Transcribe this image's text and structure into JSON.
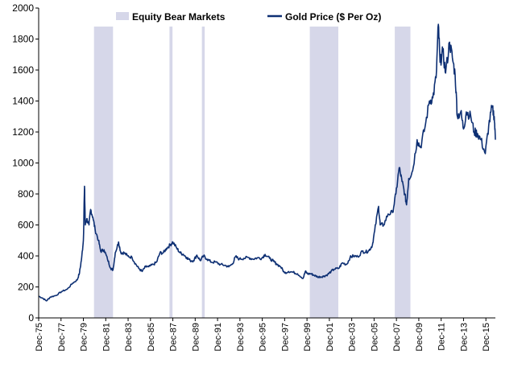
{
  "chart_data": {
    "type": "line",
    "title": "",
    "xlabel": "",
    "ylabel": "",
    "x_domain": [
      1975.95,
      2016.8
    ],
    "ylim": [
      0,
      2000
    ],
    "y_ticks": [
      0,
      200,
      400,
      600,
      800,
      1000,
      1200,
      1400,
      1600,
      1800,
      2000
    ],
    "x_ticks": [
      {
        "label": "Dec-75",
        "x": 1975.95
      },
      {
        "label": "Dec-77",
        "x": 1977.95
      },
      {
        "label": "Dec-79",
        "x": 1979.95
      },
      {
        "label": "Dec-81",
        "x": 1981.95
      },
      {
        "label": "Dec-83",
        "x": 1983.95
      },
      {
        "label": "Dec-85",
        "x": 1985.95
      },
      {
        "label": "Dec-87",
        "x": 1987.95
      },
      {
        "label": "Dec-89",
        "x": 1989.95
      },
      {
        "label": "Dec-91",
        "x": 1991.95
      },
      {
        "label": "Dec-93",
        "x": 1993.95
      },
      {
        "label": "Dec-95",
        "x": 1995.95
      },
      {
        "label": "Dec-97",
        "x": 1997.95
      },
      {
        "label": "Dec-99",
        "x": 1999.95
      },
      {
        "label": "Dec-01",
        "x": 2001.95
      },
      {
        "label": "Dec-03",
        "x": 2003.95
      },
      {
        "label": "Dec-05",
        "x": 2005.95
      },
      {
        "label": "Dec-07",
        "x": 2007.95
      },
      {
        "label": "Dec-09",
        "x": 2009.95
      },
      {
        "label": "Dec-11",
        "x": 2011.95
      },
      {
        "label": "Dec-13",
        "x": 2013.95
      },
      {
        "label": "Dec-15",
        "x": 2015.95
      }
    ],
    "legend": {
      "position": "top-center",
      "bear_label": "Equity Bear Markets",
      "gold_label": "Gold Price ($ Per Oz)"
    },
    "colors": {
      "gold": "#0d2f73",
      "bear": "#d6d7e9"
    },
    "bear_markets": [
      {
        "start": 1980.9,
        "end": 1982.6
      },
      {
        "start": 1987.65,
        "end": 1987.92
      },
      {
        "start": 1990.55,
        "end": 1990.8
      },
      {
        "start": 2000.2,
        "end": 2002.75
      },
      {
        "start": 2007.8,
        "end": 2009.2
      }
    ],
    "series": [
      {
        "name": "Gold Price ($ Per Oz)",
        "points": [
          [
            1975.95,
            140
          ],
          [
            1976.3,
            128
          ],
          [
            1976.65,
            110
          ],
          [
            1977.0,
            135
          ],
          [
            1977.5,
            145
          ],
          [
            1978.0,
            170
          ],
          [
            1978.5,
            185
          ],
          [
            1979.0,
            225
          ],
          [
            1979.4,
            245
          ],
          [
            1979.6,
            290
          ],
          [
            1979.8,
            390
          ],
          [
            1979.95,
            500
          ],
          [
            1980.05,
            850
          ],
          [
            1980.12,
            600
          ],
          [
            1980.25,
            640
          ],
          [
            1980.45,
            600
          ],
          [
            1980.6,
            700
          ],
          [
            1980.8,
            650
          ],
          [
            1981.0,
            570
          ],
          [
            1981.3,
            500
          ],
          [
            1981.5,
            430
          ],
          [
            1981.8,
            440
          ],
          [
            1982.1,
            380
          ],
          [
            1982.4,
            320
          ],
          [
            1982.6,
            310
          ],
          [
            1982.8,
            420
          ],
          [
            1983.1,
            490
          ],
          [
            1983.3,
            420
          ],
          [
            1983.6,
            420
          ],
          [
            1983.9,
            400
          ],
          [
            1984.3,
            390
          ],
          [
            1984.6,
            350
          ],
          [
            1984.9,
            320
          ],
          [
            1985.2,
            300
          ],
          [
            1985.5,
            330
          ],
          [
            1985.8,
            330
          ],
          [
            1986.2,
            345
          ],
          [
            1986.5,
            360
          ],
          [
            1986.8,
            420
          ],
          [
            1987.1,
            420
          ],
          [
            1987.4,
            450
          ],
          [
            1987.7,
            470
          ],
          [
            1987.95,
            490
          ],
          [
            1988.3,
            450
          ],
          [
            1988.6,
            420
          ],
          [
            1988.9,
            410
          ],
          [
            1989.2,
            390
          ],
          [
            1989.5,
            370
          ],
          [
            1989.8,
            370
          ],
          [
            1990.1,
            405
          ],
          [
            1990.4,
            370
          ],
          [
            1990.7,
            400
          ],
          [
            1991.0,
            380
          ],
          [
            1991.4,
            360
          ],
          [
            1991.8,
            360
          ],
          [
            1992.2,
            345
          ],
          [
            1992.6,
            340
          ],
          [
            1992.95,
            330
          ],
          [
            1993.3,
            350
          ],
          [
            1993.55,
            395
          ],
          [
            1993.9,
            380
          ],
          [
            1994.3,
            385
          ],
          [
            1994.7,
            390
          ],
          [
            1995.1,
            380
          ],
          [
            1995.5,
            388
          ],
          [
            1995.9,
            385
          ],
          [
            1996.2,
            410
          ],
          [
            1996.6,
            385
          ],
          [
            1996.95,
            365
          ],
          [
            1997.2,
            350
          ],
          [
            1997.6,
            330
          ],
          [
            1997.95,
            290
          ],
          [
            1998.3,
            300
          ],
          [
            1998.7,
            295
          ],
          [
            1999.1,
            285
          ],
          [
            1999.6,
            255
          ],
          [
            1999.8,
            300
          ],
          [
            2000.0,
            285
          ],
          [
            2000.3,
            285
          ],
          [
            2000.6,
            275
          ],
          [
            2000.9,
            265
          ],
          [
            2001.2,
            265
          ],
          [
            2001.5,
            270
          ],
          [
            2001.8,
            280
          ],
          [
            2002.1,
            300
          ],
          [
            2002.4,
            315
          ],
          [
            2002.8,
            320
          ],
          [
            2003.1,
            355
          ],
          [
            2003.5,
            345
          ],
          [
            2003.8,
            390
          ],
          [
            2004.1,
            400
          ],
          [
            2004.5,
            395
          ],
          [
            2004.9,
            430
          ],
          [
            2005.2,
            425
          ],
          [
            2005.5,
            435
          ],
          [
            2005.8,
            470
          ],
          [
            2006.0,
            560
          ],
          [
            2006.35,
            720
          ],
          [
            2006.5,
            600
          ],
          [
            2006.8,
            600
          ],
          [
            2007.2,
            670
          ],
          [
            2007.6,
            680
          ],
          [
            2007.9,
            800
          ],
          [
            2008.2,
            970
          ],
          [
            2008.45,
            880
          ],
          [
            2008.7,
            800
          ],
          [
            2008.85,
            730
          ],
          [
            2009.05,
            900
          ],
          [
            2009.4,
            950
          ],
          [
            2009.8,
            1150
          ],
          [
            2010.1,
            1100
          ],
          [
            2010.5,
            1230
          ],
          [
            2010.9,
            1400
          ],
          [
            2011.2,
            1420
          ],
          [
            2011.5,
            1550
          ],
          [
            2011.7,
            1895
          ],
          [
            2011.85,
            1650
          ],
          [
            2012.1,
            1720
          ],
          [
            2012.35,
            1580
          ],
          [
            2012.7,
            1780
          ],
          [
            2012.95,
            1680
          ],
          [
            2013.2,
            1570
          ],
          [
            2013.4,
            1300
          ],
          [
            2013.7,
            1330
          ],
          [
            2013.95,
            1220
          ],
          [
            2014.2,
            1330
          ],
          [
            2014.6,
            1300
          ],
          [
            2014.9,
            1200
          ],
          [
            2015.2,
            1190
          ],
          [
            2015.5,
            1150
          ],
          [
            2015.9,
            1060
          ],
          [
            2016.2,
            1240
          ],
          [
            2016.5,
            1360
          ],
          [
            2016.7,
            1300
          ],
          [
            2016.8,
            1150
          ]
        ]
      }
    ]
  }
}
